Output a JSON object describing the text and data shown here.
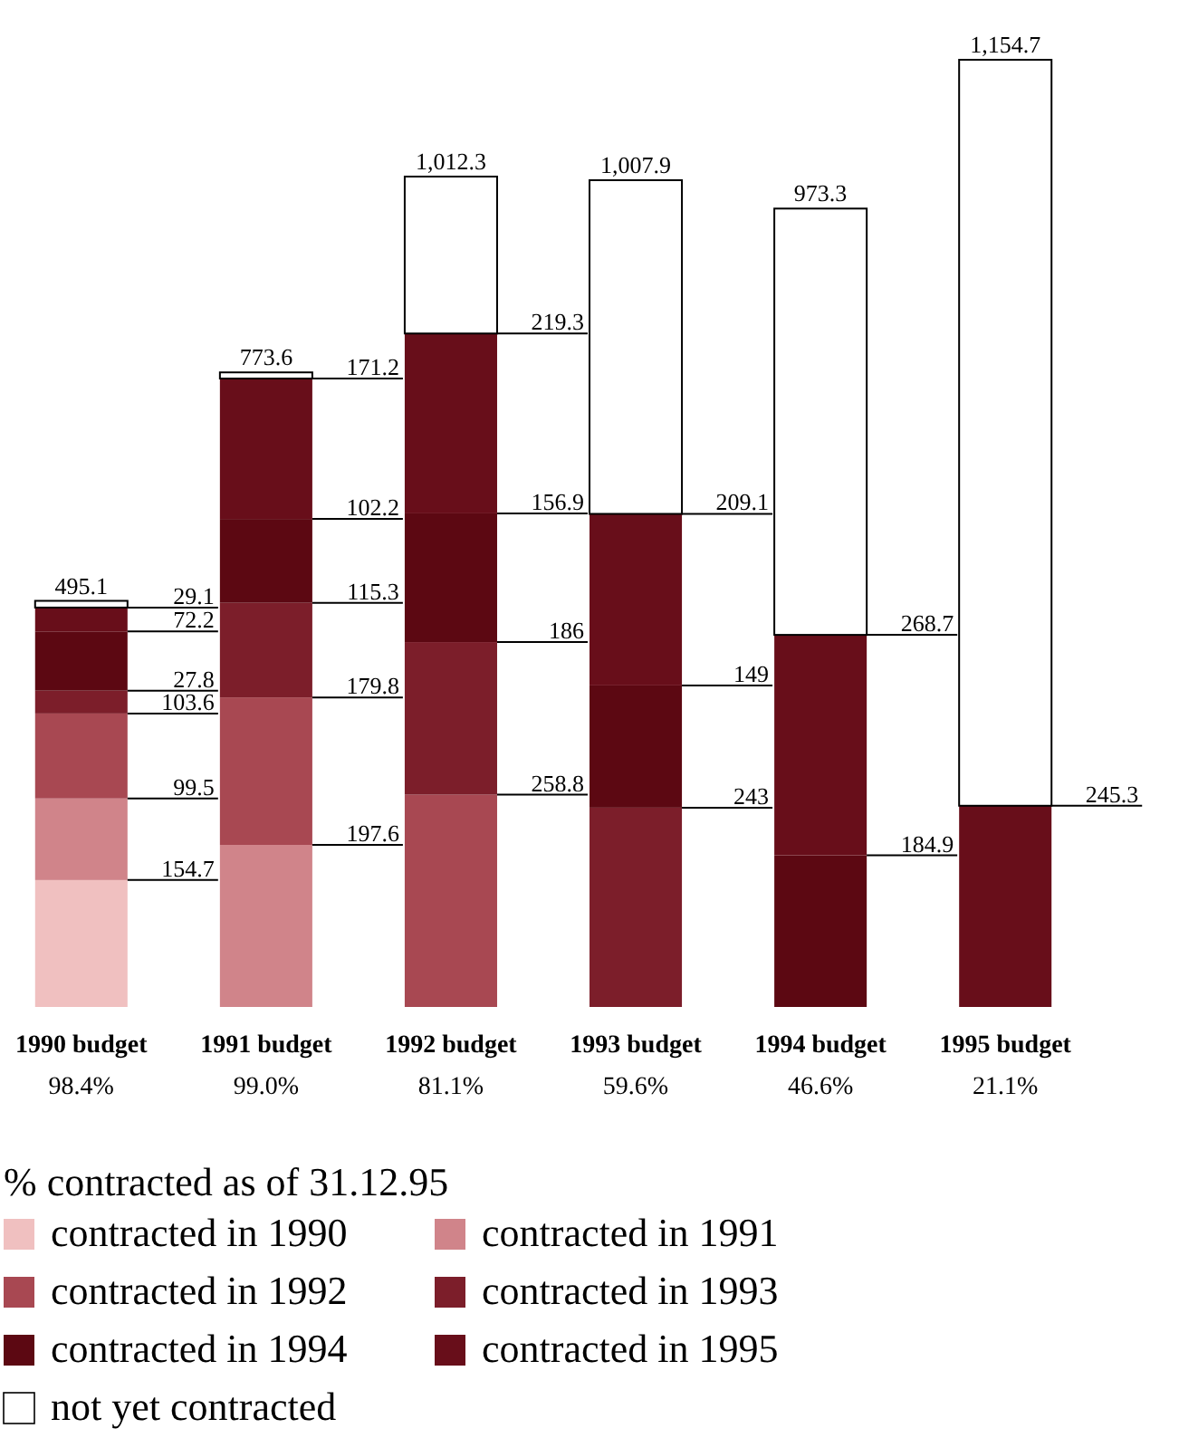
{
  "chart_data": {
    "type": "bar",
    "stacked": true,
    "categories": [
      "1990 budget",
      "1991 budget",
      "1992 budget",
      "1993 budget",
      "1994 budget",
      "1995 budget"
    ],
    "series": [
      {
        "name": "contracted in 1990",
        "color": "#f0c0c0",
        "values": [
          154.7,
          null,
          null,
          null,
          null,
          null
        ],
        "value_labels": [
          "154.7",
          null,
          null,
          null,
          null,
          null
        ]
      },
      {
        "name": "contracted in 1991",
        "color": "#d0848a",
        "values": [
          99.5,
          197.6,
          null,
          null,
          null,
          null
        ],
        "value_labels": [
          "99.5",
          "197.6",
          null,
          null,
          null,
          null
        ]
      },
      {
        "name": "contracted in 1992",
        "color": "#a84852",
        "values": [
          103.6,
          179.8,
          258.8,
          null,
          null,
          null
        ],
        "value_labels": [
          "103.6",
          "179.8",
          "258.8",
          null,
          null,
          null
        ]
      },
      {
        "name": "contracted in 1993",
        "color": "#7c1e2a",
        "values": [
          27.8,
          115.3,
          186,
          243,
          null,
          null
        ],
        "value_labels": [
          "27.8",
          "115.3",
          "186",
          "243",
          null,
          null
        ]
      },
      {
        "name": "contracted in 1994",
        "color": "#5c0812",
        "values": [
          72.2,
          102.2,
          156.9,
          149,
          184.9,
          null
        ],
        "value_labels": [
          "72.2",
          "102.2",
          "156.9",
          "149",
          "184.9",
          null
        ]
      },
      {
        "name": "contracted in 1995",
        "color": "#680e1a",
        "values": [
          29.1,
          171.2,
          219.3,
          209.1,
          268.7,
          245.3
        ],
        "value_labels": [
          "29.1",
          "171.2",
          "219.3",
          "209.1",
          "268.7",
          "245.3"
        ]
      },
      {
        "name": "not yet contracted",
        "color": "#ffffff",
        "values": [
          8.2,
          7.5,
          191.3,
          406.8,
          519.7,
          909.4
        ]
      }
    ],
    "totals": [
      "495.1",
      "773.6",
      "1,012.3",
      "1,007.9",
      "973.3",
      "1,154.7"
    ],
    "annotations": [
      "98.4%",
      "99.0%",
      "81.1%",
      "59.6%",
      "46.6%",
      "21.1%"
    ],
    "legend_title": "% contracted as of 31.12.95",
    "legend": "bottom"
  }
}
